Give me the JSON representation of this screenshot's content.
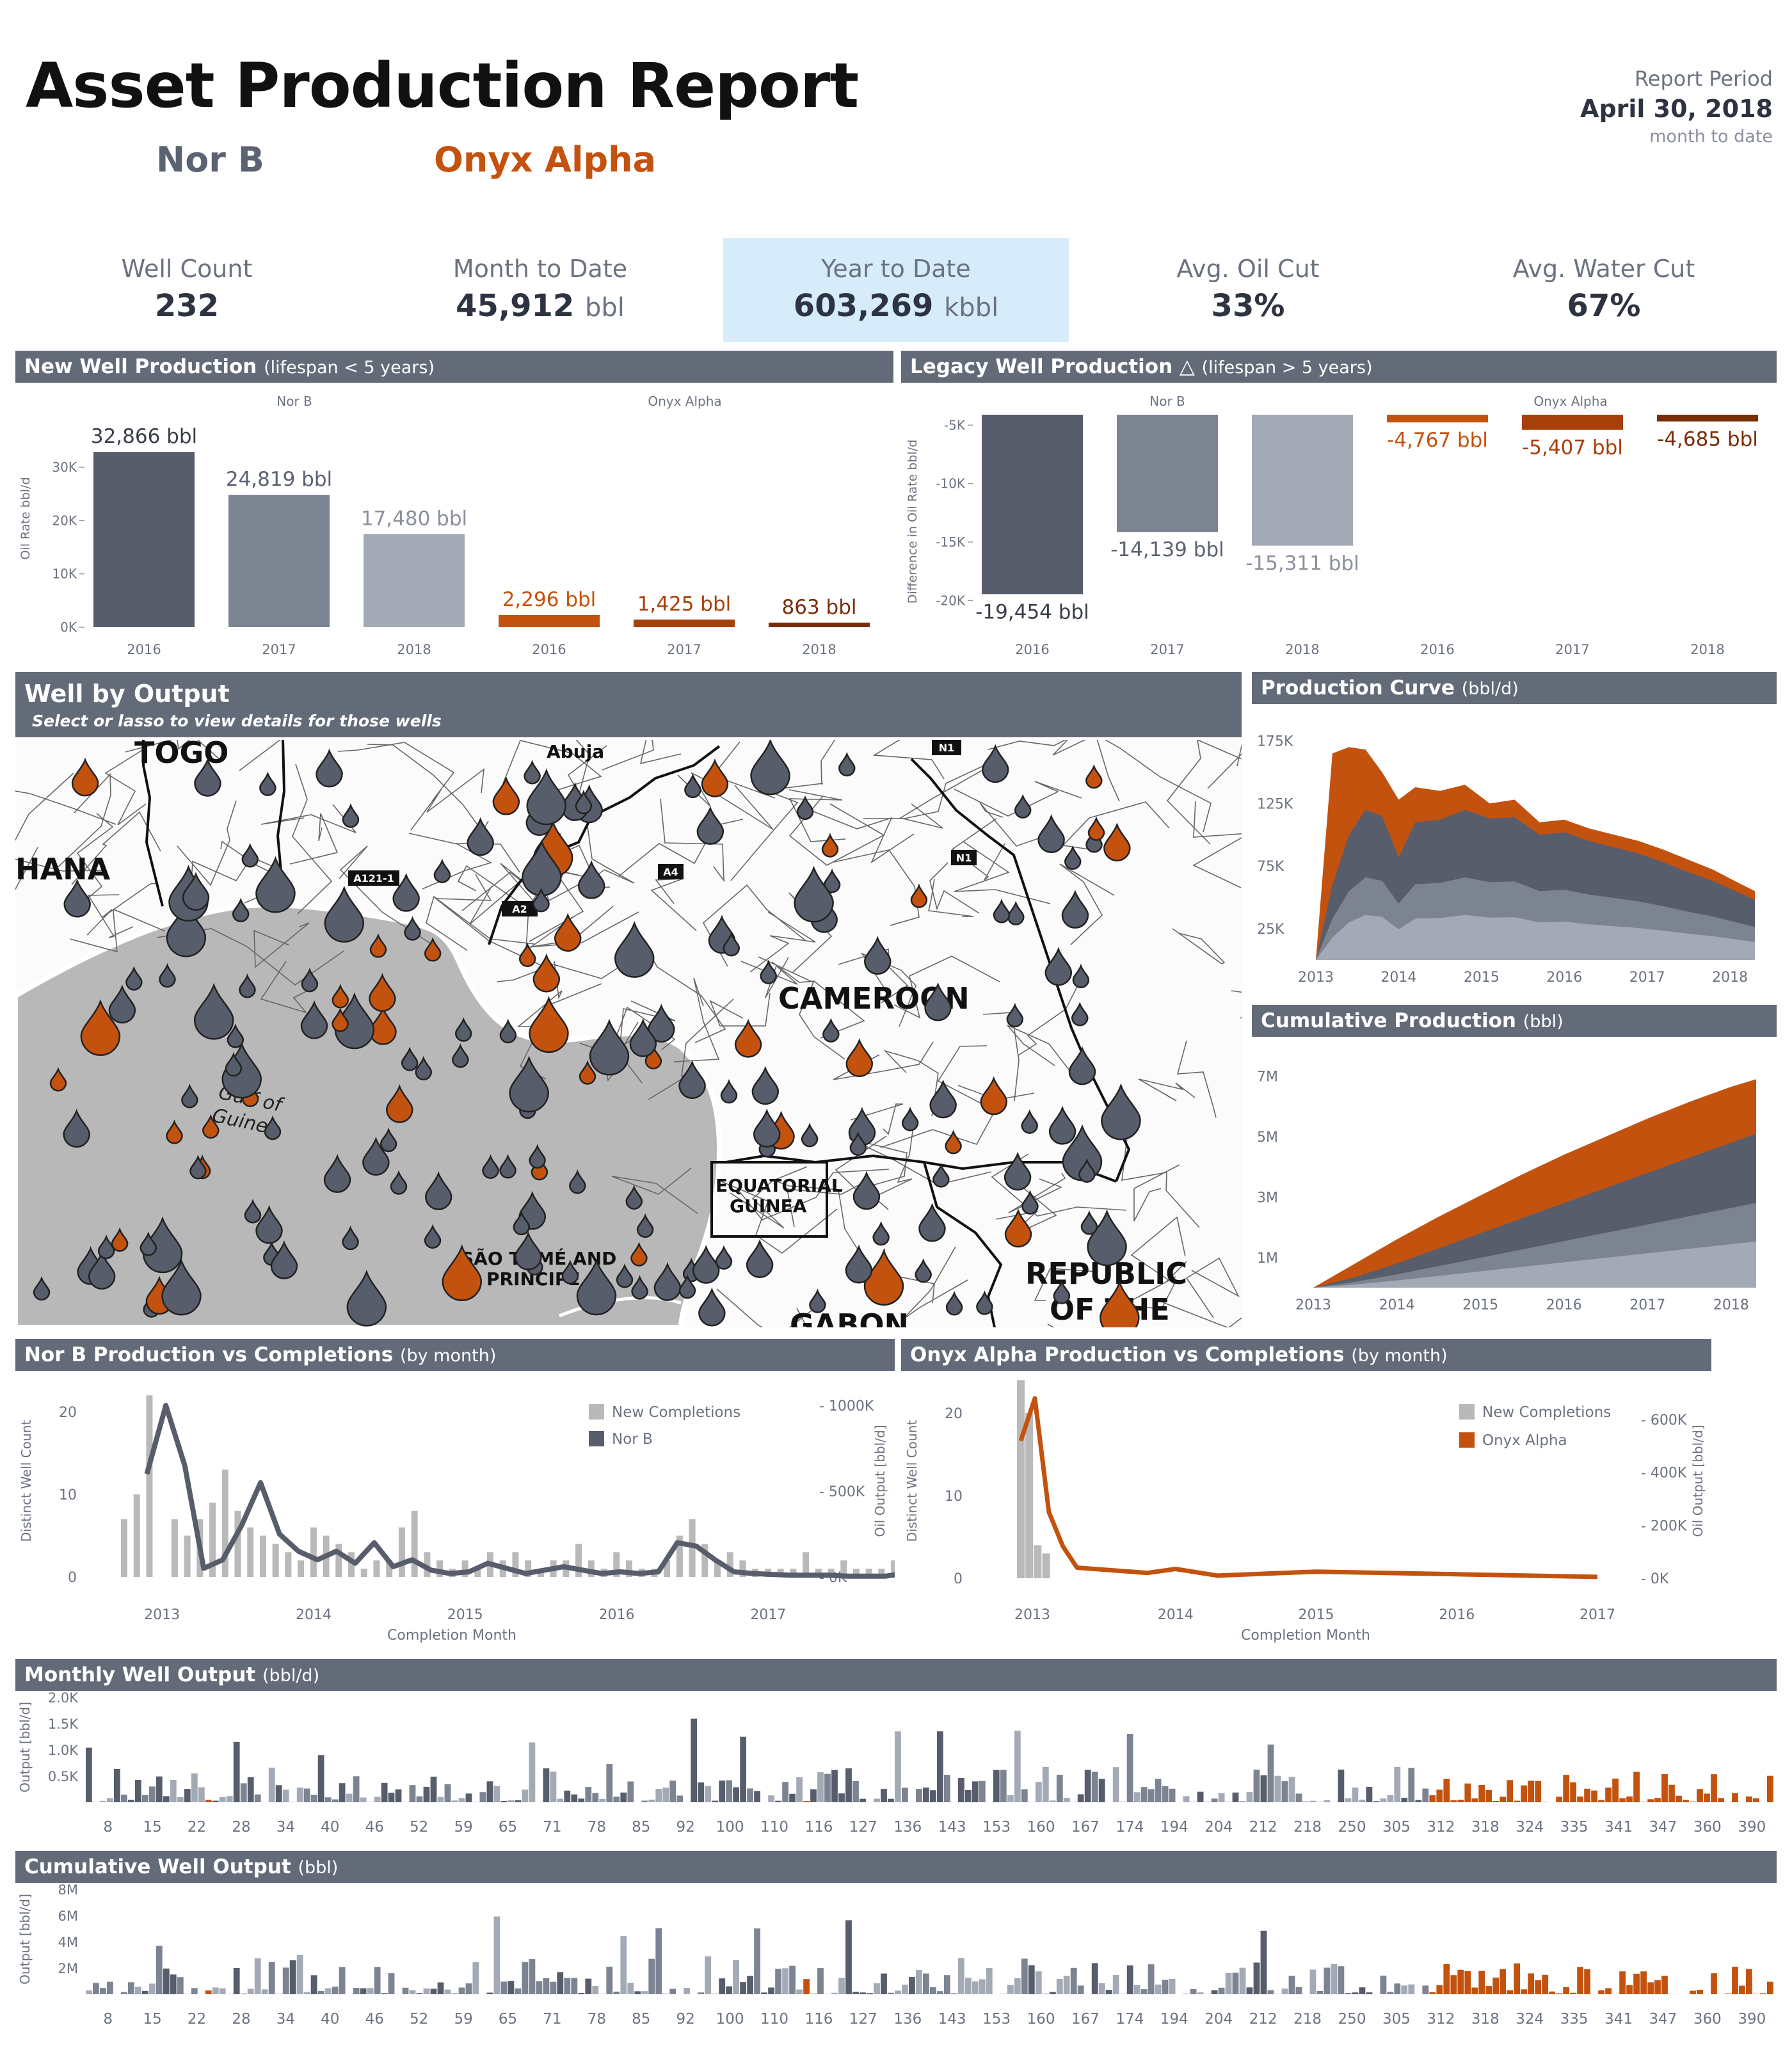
{
  "header": {
    "title": "Asset Production Report",
    "legend_a": "Nor B",
    "legend_b": "Onyx Alpha",
    "report_label": "Report Period",
    "report_date": "April 30, 2018",
    "report_sub": "month to date"
  },
  "kpis": [
    {
      "label": "Well Count",
      "value": "232",
      "unit": ""
    },
    {
      "label": "Month to Date",
      "value": "45,912",
      "unit": "bbl"
    },
    {
      "label": "Year to Date",
      "value": "603,269",
      "unit": "kbbl"
    },
    {
      "label": "Avg. Oil Cut",
      "value": "33%",
      "unit": ""
    },
    {
      "label": "Avg. Water Cut",
      "value": "67%",
      "unit": ""
    }
  ],
  "sections": {
    "new_well": {
      "title": "New Well Production",
      "sub": "(lifespan < 5 years)"
    },
    "legacy_well": {
      "title": "Legacy Well Production △",
      "sub": "(lifespan > 5 years)"
    },
    "well_output": {
      "title": "Well by Output",
      "sub": "Select or lasso to view details for those wells"
    },
    "prod_curve": {
      "title": "Production Curve",
      "sub": "(bbl/d)"
    },
    "cum_prod": {
      "title": "Cumulative Production",
      "sub": " (bbl)"
    },
    "norb_comp": {
      "title": "Nor B Production vs Completions",
      "sub": "(by month)"
    },
    "onyx_comp": {
      "title": "Onyx Alpha Production vs Completions",
      "sub": "(by month)"
    },
    "monthly": {
      "title": "Monthly Well Output",
      "sub": "(bbl/d)"
    },
    "cumulative": {
      "title": "Cumulative Well Output",
      "sub": "(bbl)"
    }
  },
  "map_labels": {
    "togo": "TOGO",
    "abuja": "Abuja",
    "ghana": "HANA",
    "cameroon": "CAMEROON",
    "gulf1": "Gulf of",
    "gulf2": "Guinea",
    "eq1": "EQUATORIAL",
    "eq2": "GUINEA",
    "st1": "SÃO TOMÉ AND",
    "st2": "PRINCIPE",
    "rep1": "REPUBLIC",
    "rep2": "OF THE",
    "gab": "GABON",
    "r_a4a": "A4",
    "r_a4b": "A4",
    "r_n1a": "N1",
    "r_n1b": "N1",
    "r_a121": "A121-1",
    "r_a2": "A2"
  },
  "colors": {
    "norb_dark": "#575d6b",
    "norb_mid": "#7c8391",
    "norb_light": "#a3aab6",
    "onyx": "#c4520f",
    "onyx_mid": "#a7400b",
    "onyx_dark": "#7a2e08",
    "header": "#636a78",
    "highlight": "#d6ecfb",
    "comp_bar": "#b9b9b9"
  },
  "chart_data": [
    {
      "id": "new_well_production",
      "type": "bar",
      "groups": [
        "Nor B",
        "Onyx Alpha"
      ],
      "categories": [
        "2016",
        "2017",
        "2018",
        "2016",
        "2017",
        "2018"
      ],
      "values": [
        32866,
        24819,
        17480,
        2296,
        1425,
        863
      ],
      "labels": [
        "32,866 bbl",
        "24,819 bbl",
        "17,480 bbl",
        "2,296 bbl",
        "1,425 bbl",
        "863 bbl"
      ],
      "ylabel": "Oil Rate bbl/d",
      "yticks": [
        "0K",
        "10K",
        "20K",
        "30K"
      ],
      "ylim": [
        0,
        35000
      ]
    },
    {
      "id": "legacy_well_production",
      "type": "bar",
      "groups": [
        "Nor B",
        "Onyx Alpha"
      ],
      "categories": [
        "2016",
        "2017",
        "2018",
        "2016",
        "2017",
        "2018"
      ],
      "values": [
        -19454,
        -14139,
        -15311,
        -4767,
        -5407,
        -4685
      ],
      "labels": [
        "-19,454 bbl",
        "-14,139 bbl",
        "-15,311 bbl",
        "-4,767 bbl",
        "-5,407 bbl",
        "-4,685 bbl"
      ],
      "ylabel": "Difference in Oil Rate bbl/d",
      "yticks": [
        "-5K",
        "-10K",
        "-15K",
        "-20K"
      ],
      "ylim": [
        -21000,
        -4000
      ]
    },
    {
      "id": "production_curve",
      "type": "area",
      "x": [
        2013.0,
        2013.2,
        2013.4,
        2013.6,
        2013.8,
        2014.0,
        2014.2,
        2014.5,
        2014.8,
        2015.1,
        2015.4,
        2015.7,
        2016.0,
        2016.3,
        2016.6,
        2016.9,
        2017.2,
        2017.5,
        2017.8,
        2018.0,
        2018.3
      ],
      "series": [
        {
          "name": "Onyx Alpha",
          "values": [
            0,
            165000,
            170000,
            168000,
            150000,
            128000,
            138000,
            135000,
            140000,
            125000,
            128000,
            110000,
            112000,
            105000,
            100000,
            95000,
            88000,
            80000,
            72000,
            65000,
            55000
          ]
        },
        {
          "name": "Nor B",
          "values": [
            0,
            60000,
            100000,
            120000,
            115000,
            82000,
            110000,
            112000,
            120000,
            113000,
            114000,
            100000,
            102000,
            95000,
            90000,
            85000,
            78000,
            70000,
            63000,
            57000,
            48000
          ]
        }
      ],
      "xticks": [
        "2013",
        "2014",
        "2015",
        "2016",
        "2017",
        "2018"
      ],
      "yticks": [
        "25K",
        "75K",
        "125K",
        "175K"
      ],
      "ylim": [
        0,
        185000
      ]
    },
    {
      "id": "cumulative_production",
      "type": "area",
      "x": [
        2013.0,
        2013.5,
        2014.0,
        2014.5,
        2015.0,
        2015.5,
        2016.0,
        2016.5,
        2017.0,
        2017.5,
        2018.0,
        2018.3
      ],
      "series": [
        {
          "name": "Onyx Alpha",
          "values": [
            0,
            800000,
            1600000,
            2350000,
            3050000,
            3750000,
            4400000,
            5000000,
            5600000,
            6150000,
            6650000,
            6900000
          ]
        },
        {
          "name": "Nor B",
          "values": [
            0,
            350000,
            800000,
            1300000,
            1800000,
            2300000,
            2800000,
            3300000,
            3800000,
            4300000,
            4800000,
            5100000
          ]
        }
      ],
      "xticks": [
        "2013",
        "2014",
        "2015",
        "2016",
        "2017",
        "2018"
      ],
      "yticks": [
        "1M",
        "3M",
        "5M",
        "7M"
      ],
      "ylim": [
        0,
        7500000
      ]
    },
    {
      "id": "norb_completions",
      "type": "bar+line",
      "x_start": 2012.75,
      "x_step": 0.0833,
      "completions": [
        7,
        10,
        22,
        0,
        7,
        5,
        7,
        9,
        13,
        8,
        6,
        5,
        4,
        3,
        2,
        6,
        5,
        4,
        3,
        1,
        2,
        2,
        6,
        8,
        3,
        2,
        1,
        2,
        1,
        3,
        2,
        3,
        2,
        1,
        2,
        2,
        4,
        2,
        1,
        3,
        2,
        1,
        1,
        2,
        5,
        7,
        4,
        2,
        3,
        2,
        1,
        1,
        1,
        1,
        3,
        1,
        1,
        2,
        1,
        1,
        1,
        2,
        1,
        1,
        1,
        2,
        1,
        1,
        1,
        1,
        1,
        1,
        1,
        1,
        1,
        1,
        1,
        1,
        1,
        1,
        1,
        1,
        1,
        1,
        1,
        1,
        1,
        1,
        1,
        1
      ],
      "output": [
        600000,
        1000000,
        650000,
        50000,
        100000,
        300000,
        550000,
        250000,
        150000,
        100000,
        150000,
        80000,
        200000,
        60000,
        100000,
        40000,
        20000,
        30000,
        80000,
        50000,
        20000,
        40000,
        60000,
        40000,
        20000,
        30000,
        20000,
        30000,
        200000,
        180000,
        100000,
        30000,
        20000,
        15000,
        10000,
        10000,
        10000,
        5000,
        5000,
        5000,
        20000
      ],
      "output_step": 0.125,
      "series": [
        {
          "name": "New Completions"
        },
        {
          "name": "Nor B"
        }
      ],
      "xlabel": "Completion Month",
      "ylabel_left": "Distinct Well Count",
      "ylabel_right": "Oil Output [bbl/d]",
      "xticks": [
        "2013",
        "2014",
        "2015",
        "2016",
        "2017"
      ],
      "yticks_left": [
        "0",
        "10",
        "20"
      ],
      "yticks_right": [
        "0K",
        "500K",
        "1000K"
      ]
    },
    {
      "id": "onyx_completions",
      "type": "bar+line",
      "completions": [
        24,
        20,
        4,
        3
      ],
      "output": [
        [
          2012.9,
          520000
        ],
        [
          2013.0,
          680000
        ],
        [
          2013.1,
          250000
        ],
        [
          2013.2,
          120000
        ],
        [
          2013.3,
          40000
        ],
        [
          2013.8,
          20000
        ],
        [
          2014.0,
          35000
        ],
        [
          2014.3,
          10000
        ],
        [
          2015.0,
          25000
        ],
        [
          2016.0,
          15000
        ],
        [
          2017.0,
          5000
        ]
      ],
      "series": [
        {
          "name": "New Completions"
        },
        {
          "name": "Onyx Alpha"
        }
      ],
      "xlabel": "Completion Month",
      "ylabel_left": "Distinct Well Count",
      "ylabel_right": "Oil Output [bbl/d]",
      "xticks": [
        "2013",
        "2014",
        "2015",
        "2016",
        "2017"
      ],
      "yticks_left": [
        "0",
        "10",
        "20"
      ],
      "yticks_right": [
        "0K",
        "200K",
        "400K",
        "600K"
      ]
    },
    {
      "id": "monthly_well_output",
      "type": "bar",
      "xticks": [
        "8",
        "15",
        "22",
        "28",
        "34",
        "40",
        "46",
        "52",
        "59",
        "65",
        "71",
        "78",
        "85",
        "92",
        "100",
        "110",
        "116",
        "127",
        "136",
        "143",
        "153",
        "160",
        "167",
        "174",
        "194",
        "204",
        "212",
        "218",
        "250",
        "305",
        "312",
        "318",
        "324",
        "335",
        "341",
        "347",
        "360",
        "390"
      ],
      "yticks": [
        "0.5K",
        "1.0K",
        "1.5K",
        "2.0K"
      ],
      "ylabel": "Output [bbl/d]",
      "ylim": [
        0,
        2000
      ]
    },
    {
      "id": "cumulative_well_output",
      "type": "bar",
      "xticks": [
        "8",
        "15",
        "22",
        "28",
        "34",
        "40",
        "46",
        "52",
        "59",
        "65",
        "71",
        "78",
        "85",
        "92",
        "100",
        "110",
        "116",
        "127",
        "136",
        "143",
        "153",
        "160",
        "167",
        "174",
        "194",
        "204",
        "212",
        "218",
        "250",
        "305",
        "312",
        "318",
        "324",
        "335",
        "341",
        "347",
        "360",
        "390"
      ],
      "yticks": [
        "2M",
        "4M",
        "6M",
        "8M"
      ],
      "ylabel": "Output [bbl/d]",
      "ylim": [
        0,
        8000000
      ]
    }
  ]
}
